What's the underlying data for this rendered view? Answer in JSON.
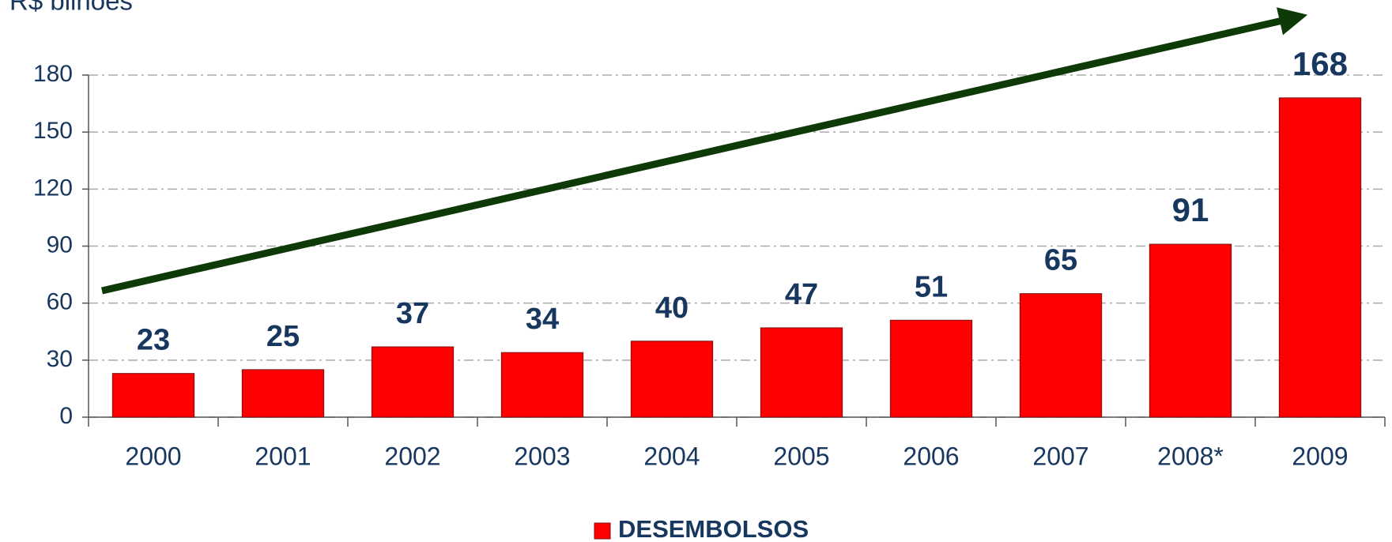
{
  "chart_data": {
    "type": "bar",
    "y_label": "R$ bilhões",
    "categories": [
      "2000",
      "2001",
      "2002",
      "2003",
      "2004",
      "2005",
      "2006",
      "2007",
      "2008*",
      "2009"
    ],
    "series": [
      {
        "name": "DESEMBOLSOS",
        "color": "#ff0000",
        "values": [
          23,
          25,
          37,
          34,
          40,
          47,
          51,
          65,
          91,
          168
        ]
      }
    ],
    "ylim": [
      0,
      180
    ],
    "yticks": [
      0,
      30,
      60,
      90,
      120,
      150,
      180
    ],
    "grid": true
  }
}
